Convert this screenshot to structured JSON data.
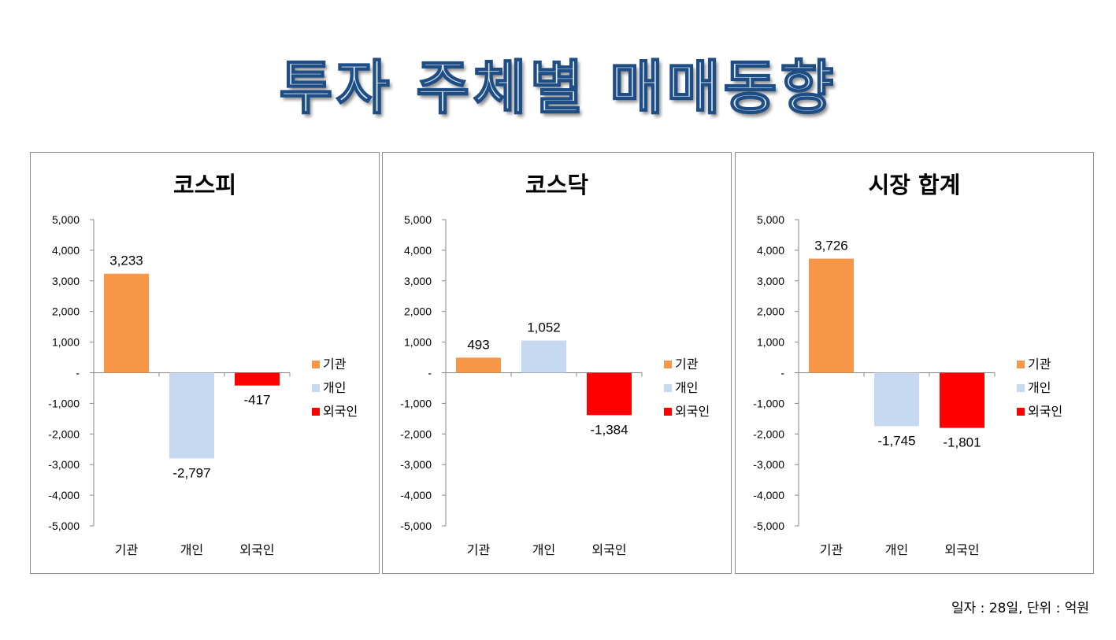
{
  "title": "투자 주체별 매매동향",
  "footnote": "일자 : 28일, 단위 : 억원",
  "legend": [
    "기관",
    "개인",
    "외국인"
  ],
  "colors": [
    "#f79646",
    "#c6d9f1",
    "#ff0000"
  ],
  "chart_data": [
    {
      "type": "bar",
      "title": "코스피",
      "categories": [
        "기관",
        "개인",
        "외국인"
      ],
      "values": [
        3233,
        -2797,
        -417
      ],
      "value_labels": [
        "3,233",
        "-2,797",
        "-417"
      ],
      "ylim": [
        -5000,
        5000
      ],
      "yticks": [
        "5,000",
        "4,000",
        "3,000",
        "2,000",
        "1,000",
        "-",
        "-1,000",
        "-2,000",
        "-3,000",
        "-4,000",
        "-5,000"
      ],
      "legend": "right"
    },
    {
      "type": "bar",
      "title": "코스닥",
      "categories": [
        "기관",
        "개인",
        "외국인"
      ],
      "values": [
        493,
        1052,
        -1384
      ],
      "value_labels": [
        "493",
        "1,052",
        "-1,384"
      ],
      "ylim": [
        -5000,
        5000
      ],
      "yticks": [
        "5,000",
        "4,000",
        "3,000",
        "2,000",
        "1,000",
        "-",
        "-1,000",
        "-2,000",
        "-3,000",
        "-4,000",
        "-5,000"
      ],
      "legend": "right"
    },
    {
      "type": "bar",
      "title": "시장 합계",
      "categories": [
        "기관",
        "개인",
        "외국인"
      ],
      "values": [
        3726,
        -1745,
        -1801
      ],
      "value_labels": [
        "3,726",
        "-1,745",
        "-1,801"
      ],
      "ylim": [
        -5000,
        5000
      ],
      "yticks": [
        "5,000",
        "4,000",
        "3,000",
        "2,000",
        "1,000",
        "-",
        "-1,000",
        "-2,000",
        "-3,000",
        "-4,000",
        "-5,000"
      ],
      "legend": "right"
    }
  ]
}
